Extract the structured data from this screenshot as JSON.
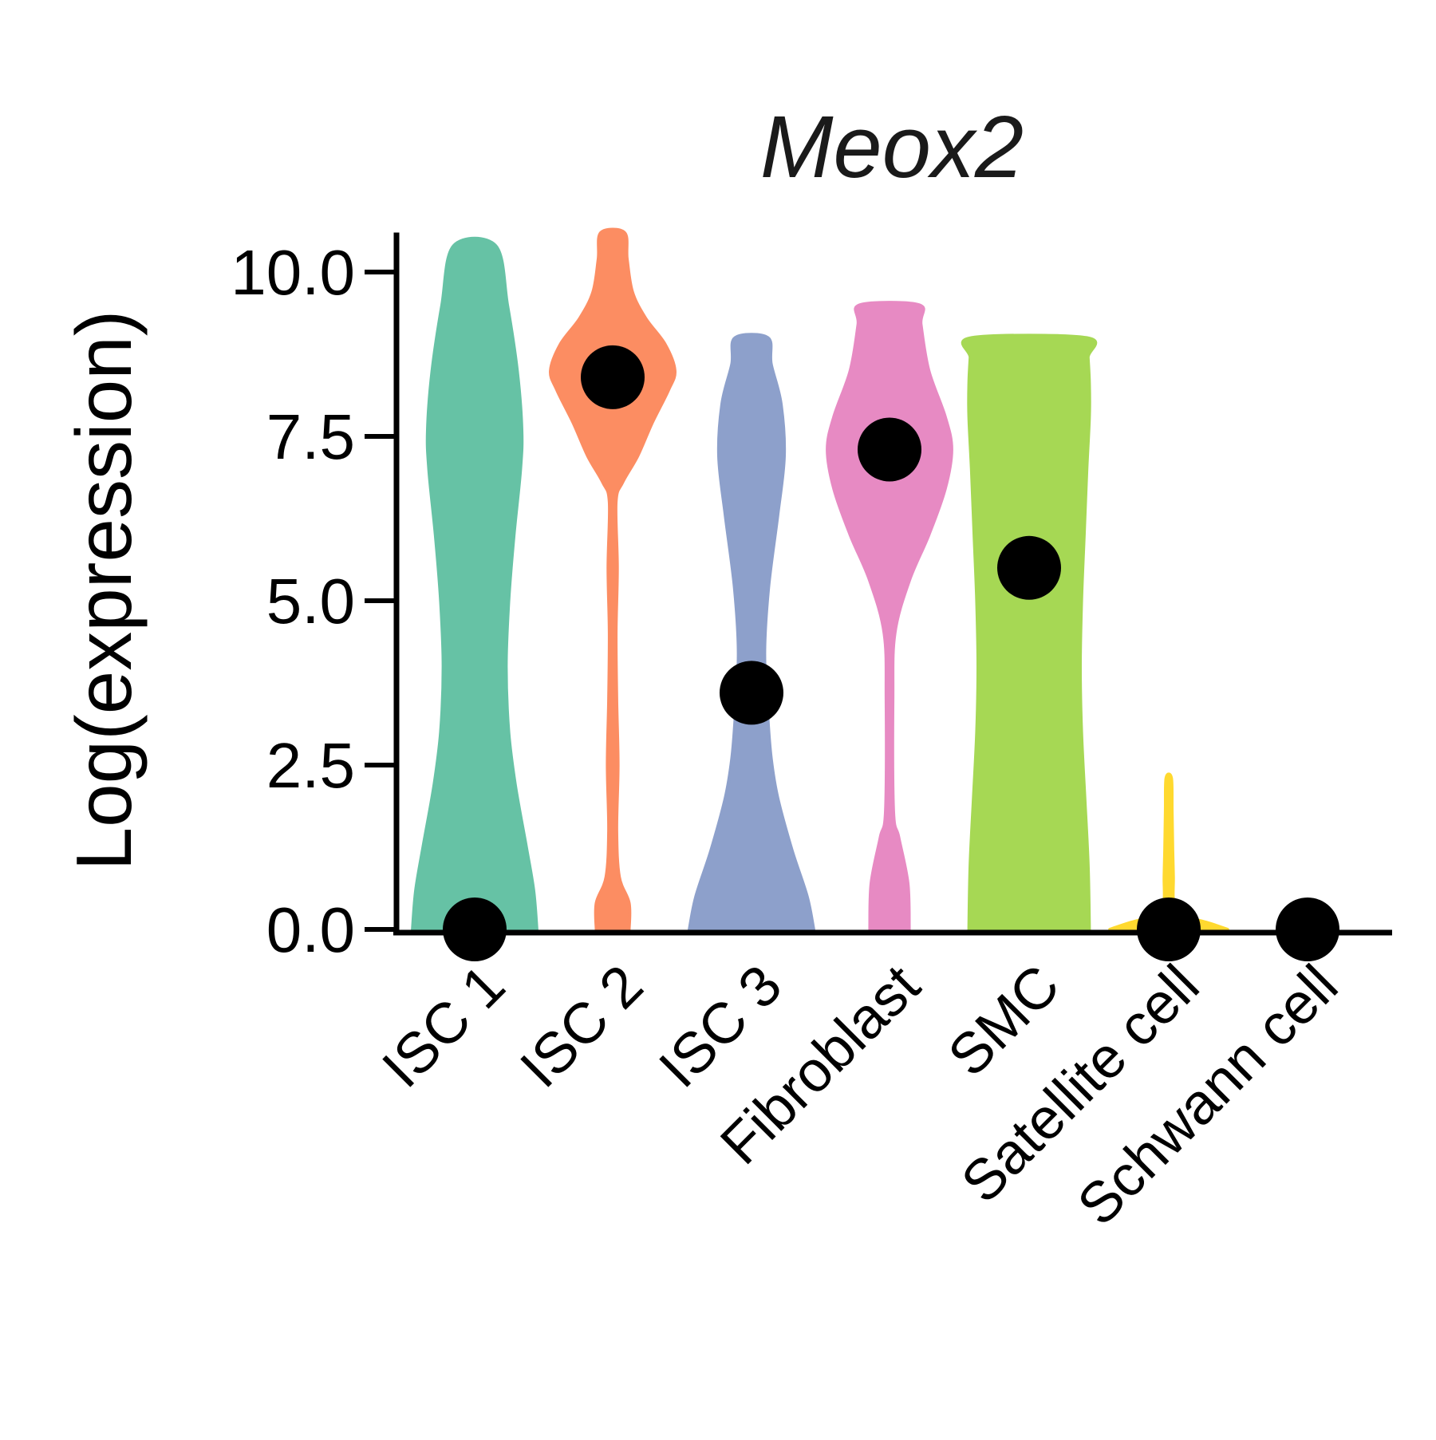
{
  "chart_data": {
    "type": "violin",
    "title": "Meox2",
    "xlabel": "",
    "ylabel": "Log(expression)",
    "ylim": [
      0,
      10.6
    ],
    "yticks": [
      0.0,
      2.5,
      5.0,
      7.5,
      10.0
    ],
    "ytick_labels": [
      "0.0",
      "2.5",
      "5.0",
      "7.5",
      "10.0"
    ],
    "grid": false,
    "legend": "none",
    "median_marker_color": "#000000",
    "axis_color": "#000000",
    "categories": [
      "ISC 1",
      "ISC 2",
      "ISC 3",
      "Fibroblast",
      "SMC",
      "Satellite cell",
      "Schwann cell"
    ],
    "series": [
      {
        "category": "ISC 1",
        "color": "#66C2A5",
        "median": 0.0,
        "max": 10.4,
        "density": [
          [
            0,
            0.95
          ],
          [
            0.6,
            0.9
          ],
          [
            1.3,
            0.78
          ],
          [
            2.2,
            0.62
          ],
          [
            3.0,
            0.52
          ],
          [
            4.0,
            0.48
          ],
          [
            5.0,
            0.52
          ],
          [
            6.0,
            0.6
          ],
          [
            7.0,
            0.7
          ],
          [
            7.6,
            0.72
          ],
          [
            8.5,
            0.65
          ],
          [
            9.5,
            0.5
          ],
          [
            10.4,
            0.32
          ]
        ]
      },
      {
        "category": "ISC 2",
        "color": "#FC8D62",
        "median": 8.4,
        "max": 10.6,
        "density": [
          [
            0,
            0.25
          ],
          [
            0.4,
            0.25
          ],
          [
            0.8,
            0.1
          ],
          [
            1.5,
            0.06
          ],
          [
            2.5,
            0.08
          ],
          [
            3.5,
            0.06
          ],
          [
            4.5,
            0.05
          ],
          [
            5.5,
            0.07
          ],
          [
            6.5,
            0.05
          ],
          [
            6.8,
            0.15
          ],
          [
            7.2,
            0.38
          ],
          [
            7.7,
            0.6
          ],
          [
            8.2,
            0.85
          ],
          [
            8.5,
            0.95
          ],
          [
            8.9,
            0.8
          ],
          [
            9.3,
            0.5
          ],
          [
            9.7,
            0.3
          ],
          [
            10.2,
            0.22
          ],
          [
            10.6,
            0.18
          ]
        ]
      },
      {
        "category": "ISC 3",
        "color": "#8DA0CB",
        "median": 3.6,
        "max": 9.0,
        "density": [
          [
            0,
            0.95
          ],
          [
            0.5,
            0.85
          ],
          [
            1.2,
            0.62
          ],
          [
            2.0,
            0.4
          ],
          [
            2.6,
            0.3
          ],
          [
            3.2,
            0.25
          ],
          [
            4.2,
            0.2
          ],
          [
            5.2,
            0.26
          ],
          [
            6.3,
            0.4
          ],
          [
            7.2,
            0.5
          ],
          [
            8.0,
            0.45
          ],
          [
            8.6,
            0.3
          ],
          [
            9.0,
            0.25
          ]
        ]
      },
      {
        "category": "Fibroblast",
        "color": "#E78AC3",
        "median": 7.3,
        "max": 9.5,
        "density": [
          [
            0,
            0.3
          ],
          [
            0.7,
            0.28
          ],
          [
            1.4,
            0.14
          ],
          [
            1.8,
            0.06
          ],
          [
            3.5,
            0.05
          ],
          [
            4.5,
            0.08
          ],
          [
            5.3,
            0.3
          ],
          [
            6.0,
            0.6
          ],
          [
            6.7,
            0.85
          ],
          [
            7.3,
            0.95
          ],
          [
            7.8,
            0.85
          ],
          [
            8.5,
            0.6
          ],
          [
            9.2,
            0.48
          ],
          [
            9.5,
            0.45
          ]
        ]
      },
      {
        "category": "SMC",
        "color": "#A6D854",
        "median": 5.5,
        "max": 9.0,
        "density": [
          [
            0,
            0.92
          ],
          [
            1.0,
            0.9
          ],
          [
            2.0,
            0.85
          ],
          [
            3.0,
            0.8
          ],
          [
            4.0,
            0.78
          ],
          [
            5.0,
            0.8
          ],
          [
            6.0,
            0.84
          ],
          [
            7.0,
            0.88
          ],
          [
            7.8,
            0.92
          ],
          [
            8.3,
            0.92
          ],
          [
            8.7,
            0.9
          ],
          [
            9.0,
            0.88
          ]
        ]
      },
      {
        "category": "Satellite cell",
        "color": "#FFD92F",
        "median": 0.0,
        "max": 2.3,
        "density": [
          [
            0,
            0.9
          ],
          [
            0.1,
            0.6
          ],
          [
            0.2,
            0.25
          ],
          [
            0.35,
            0.08
          ],
          [
            0.8,
            0.07
          ],
          [
            1.2,
            0.06
          ],
          [
            1.8,
            0.05
          ],
          [
            2.3,
            0.04
          ]
        ]
      },
      {
        "category": "Schwann cell",
        "color": "#E5C494",
        "median": 0.0,
        "max": 0.0,
        "density": []
      }
    ]
  }
}
